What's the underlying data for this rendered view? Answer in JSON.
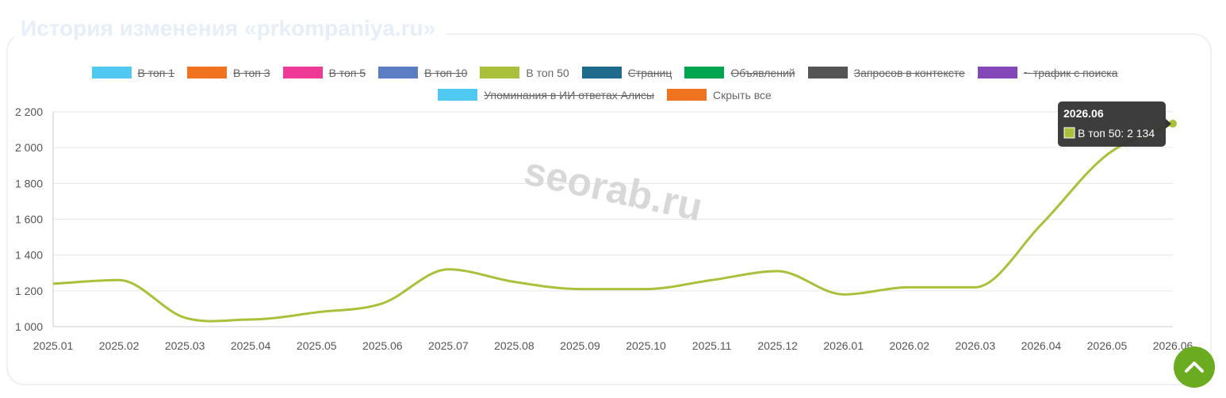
{
  "title": "История изменения «prkompaniya.ru»",
  "chart_data": {
    "type": "line",
    "categories": [
      "2025.01",
      "2025.02",
      "2025.03",
      "2025.04",
      "2025.05",
      "2025.06",
      "2025.07",
      "2025.08",
      "2025.09",
      "2025.10",
      "2025.11",
      "2025.12",
      "2026.01",
      "2026.02",
      "2026.03",
      "2026.04",
      "2026.05",
      "2026.06"
    ],
    "series": [
      {
        "name": "В топ 50",
        "color": "#a9c13a",
        "values": [
          1240,
          1260,
          1050,
          1040,
          1080,
          1130,
          1320,
          1250,
          1210,
          1210,
          1260,
          1310,
          1180,
          1220,
          1220,
          1570,
          1960,
          2134
        ]
      }
    ],
    "legend": [
      {
        "name": "В топ 1",
        "color": "#4fc9f0",
        "hidden": true
      },
      {
        "name": "В топ 3",
        "color": "#f07320",
        "hidden": true
      },
      {
        "name": "В топ 5",
        "color": "#ee3a96",
        "hidden": true
      },
      {
        "name": "В топ 10",
        "color": "#5b7dc4",
        "hidden": true
      },
      {
        "name": "В топ 50",
        "color": "#a9c13a",
        "hidden": false
      },
      {
        "name": "Страниц",
        "color": "#1d6a8c",
        "hidden": true
      },
      {
        "name": "Объявлений",
        "color": "#00a550",
        "hidden": true
      },
      {
        "name": "Запросов в контексте",
        "color": "#555555",
        "hidden": true
      },
      {
        "name": "~ трафик с поиска",
        "color": "#8447b8",
        "hidden": true
      },
      {
        "name": "Упоминания в ИИ ответах Алисы",
        "color": "#4fc9f0",
        "hidden": true
      }
    ],
    "toggle_all": {
      "label": "Скрыть все",
      "color": "#f07320"
    },
    "ylim": [
      1000,
      2200
    ],
    "yticks": [
      {
        "value": 1000,
        "label": "1 000"
      },
      {
        "value": 1200,
        "label": "1 200"
      },
      {
        "value": 1400,
        "label": "1 400"
      },
      {
        "value": 1600,
        "label": "1 600"
      },
      {
        "value": 1800,
        "label": "1 800"
      },
      {
        "value": 2000,
        "label": "2 000"
      },
      {
        "value": 2200,
        "label": "2 200"
      }
    ],
    "grid": true,
    "watermark": "seorab.ru",
    "tooltip": {
      "title": "2026.06",
      "text": "В топ 50: 2 134"
    }
  }
}
